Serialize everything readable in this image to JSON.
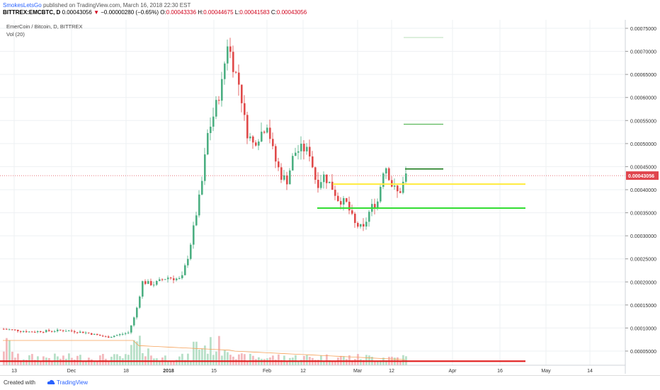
{
  "header": {
    "author": "SmokesLetsGo",
    "published_text": "published on TradingView.com, March 16, 2018 22:30 EST",
    "symbol": "BITTREX:EMCBTC, D",
    "last": "0.00043056",
    "arrow": "▼",
    "change": "−0.00000280 (−0.65%)",
    "o_label": "O:",
    "o_value": "0.00043336",
    "h_label": "H:",
    "h_value": "0.00044675",
    "l_label": "L:",
    "l_value": "0.00041583",
    "c_label": "C:",
    "c_value": "0.00043056"
  },
  "legend": {
    "series": "EmerCoin / Bitcoin, D, BITTREX",
    "volume": "Vol (20)"
  },
  "footer": {
    "created": "Created with",
    "brand": "TradingView",
    "logo_icon": "cloud-icon"
  },
  "colors": {
    "up": "#4caf82",
    "down": "#e04a4a",
    "grid": "#eef0f3",
    "price_line": "#e0454d",
    "yellow_level": "#ffeb3b",
    "green_level": "#33dd33",
    "dark_green_level": "#1b7a1b",
    "red_level": "#e01b1b"
  },
  "chart_data": {
    "type": "candlestick",
    "yaxis_ticks": [
      "0.00075000",
      "0.00070000",
      "0.00065000",
      "0.00060000",
      "0.00055000",
      "0.00050000",
      "0.00045000",
      "0.00040000",
      "0.00035000",
      "0.00030000",
      "0.00025000",
      "0.00020000",
      "0.00015000",
      "0.00010000",
      "0.00005000"
    ],
    "ylim": [
      2e-05,
      0.00077
    ],
    "xaxis_ticks": [
      "13",
      "Dec",
      "18",
      "2018",
      "15",
      "Feb",
      "12",
      "Mar",
      "12",
      "Apr",
      "16",
      "May",
      "14"
    ],
    "current_price_label": "0.00043056",
    "current_price": 0.00043056,
    "key_candles": [
      {
        "date": "mid-Nov",
        "approx_close": 9.5e-05
      },
      {
        "date": "Dec 18",
        "approx_close": 0.00013
      },
      {
        "date": "Dec 25",
        "approx_close": 0.000195
      },
      {
        "date": "2018 Jan 1",
        "approx_close": 0.00021
      },
      {
        "date": "Jan 12",
        "approx_close": 0.000405
      },
      {
        "date": "Jan 18",
        "approx_close": 0.000725
      },
      {
        "date": "Jan 25",
        "approx_close": 0.00056
      },
      {
        "date": "Feb 5",
        "approx_close": 0.000455
      },
      {
        "date": "Feb 12",
        "approx_close": 0.00049
      },
      {
        "date": "Feb 22",
        "approx_close": 0.00041
      },
      {
        "date": "Mar 5",
        "approx_close": 0.000315
      },
      {
        "date": "Mar 12",
        "approx_close": 0.00046
      },
      {
        "date": "Mar 16",
        "approx_close": 0.00043056
      }
    ],
    "levels": [
      {
        "price": 0.00073,
        "color": "#b9dfb9"
      },
      {
        "price": 0.000542,
        "color": "#5cb85c"
      },
      {
        "price": 0.000445,
        "color": "#1b7a1b"
      },
      {
        "price": 0.000412,
        "color": "#ffeb3b"
      },
      {
        "price": 0.00036,
        "color": "#33dd33"
      },
      {
        "price": 2.8e-05,
        "color": "#e01b1b"
      }
    ],
    "grid": true
  }
}
